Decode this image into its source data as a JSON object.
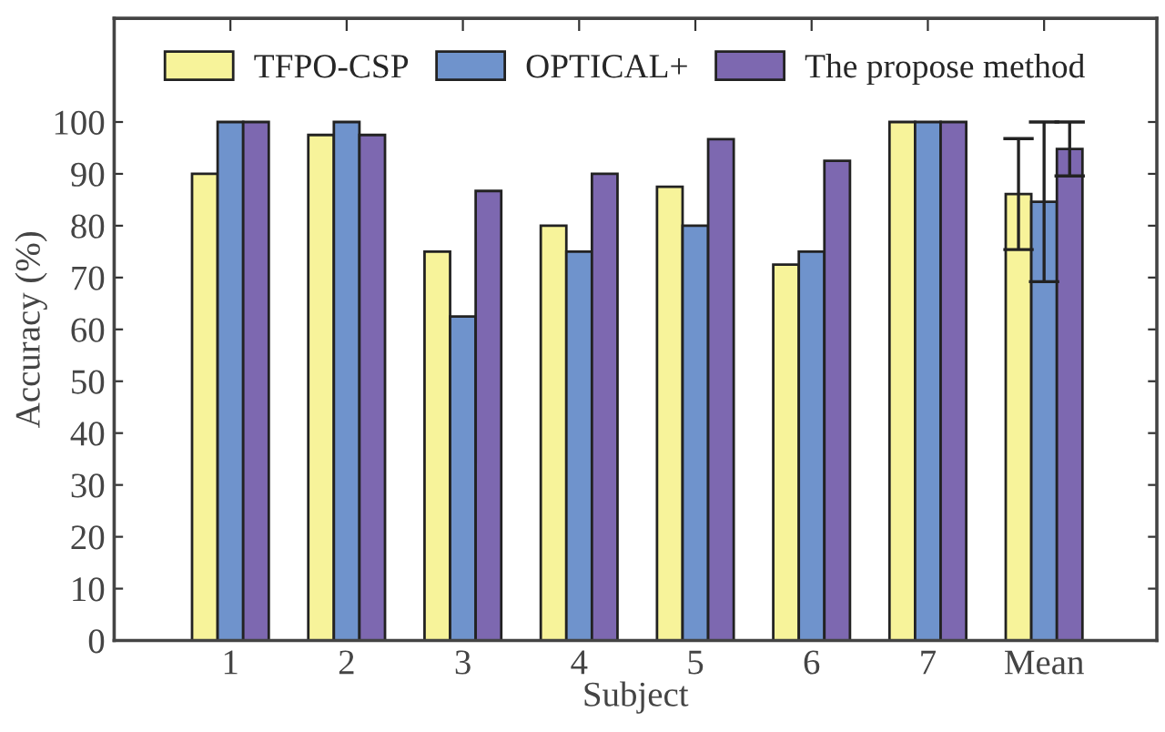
{
  "chart_data": {
    "type": "bar",
    "xlabel": "Subject",
    "ylabel": "Accuracy (%)",
    "categories": [
      "1",
      "2",
      "3",
      "4",
      "5",
      "6",
      "7",
      "Mean"
    ],
    "series": [
      {
        "name": "TFPO-CSP",
        "color": "#f7f39a",
        "values": [
          90,
          97.5,
          75,
          80,
          87.5,
          72.5,
          100,
          86.1
        ],
        "errors": [
          null,
          null,
          null,
          null,
          null,
          null,
          null,
          10.7
        ]
      },
      {
        "name": "OPTICAL+",
        "color": "#6f93cc",
        "values": [
          100,
          100,
          62.5,
          75,
          80,
          75,
          100,
          84.6
        ],
        "errors": [
          null,
          null,
          null,
          null,
          null,
          null,
          null,
          15.4
        ]
      },
      {
        "name": "The propose method",
        "color": "#7d68b0",
        "values": [
          100,
          97.5,
          86.7,
          90,
          96.7,
          92.5,
          100,
          94.8
        ],
        "errors": [
          null,
          null,
          null,
          null,
          null,
          null,
          null,
          5.2
        ]
      }
    ],
    "ylim": [
      0,
      120
    ],
    "yticks": [
      0,
      10,
      20,
      30,
      40,
      50,
      60,
      70,
      80,
      90,
      100
    ],
    "grid": false,
    "legend": "top"
  }
}
